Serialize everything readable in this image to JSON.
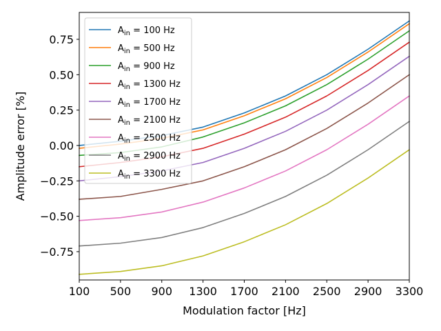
{
  "chart_data": {
    "type": "line",
    "title": "",
    "xlabel": "Modulation factor [Hz]",
    "ylabel": "Amplitude error [%]",
    "x": [
      100,
      500,
      900,
      1300,
      1700,
      2100,
      2500,
      2900,
      3300
    ],
    "xlim": [
      100,
      3300
    ],
    "ylim": [
      -0.95,
      0.94
    ],
    "xticks": [
      "100",
      "500",
      "900",
      "1300",
      "1700",
      "2100",
      "2500",
      "2900",
      "3300"
    ],
    "yticks": [
      0.75,
      0.5,
      0.25,
      0.0,
      -0.25,
      -0.5,
      -0.75
    ],
    "ytick_labels": [
      "0.75",
      "0.50",
      "0.25",
      "0.00",
      "−0.25",
      "−0.50",
      "−0.75"
    ],
    "grid": false,
    "legend_position": "top-left",
    "series": [
      {
        "name": "A_in = 100 Hz",
        "label_base": "A",
        "label_sub": "in",
        "label_rest": " = 100 Hz",
        "color": "#1f77b4",
        "values": [
          0.0,
          0.03,
          0.07,
          0.13,
          0.23,
          0.35,
          0.5,
          0.68,
          0.88
        ]
      },
      {
        "name": "A_in = 500 Hz",
        "label_base": "A",
        "label_sub": "in",
        "label_rest": " = 500 Hz",
        "color": "#ff7f0e",
        "values": [
          -0.02,
          0.01,
          0.05,
          0.11,
          0.21,
          0.33,
          0.48,
          0.66,
          0.86
        ]
      },
      {
        "name": "A_in = 900 Hz",
        "label_base": "A",
        "label_sub": "in",
        "label_rest": " = 900 Hz",
        "color": "#2ca02c",
        "values": [
          -0.07,
          -0.05,
          -0.01,
          0.06,
          0.16,
          0.28,
          0.43,
          0.61,
          0.81
        ]
      },
      {
        "name": "A_in = 1300 Hz",
        "label_base": "A",
        "label_sub": "in",
        "label_rest": " = 1300 Hz",
        "color": "#d62728",
        "values": [
          -0.15,
          -0.12,
          -0.08,
          -0.02,
          0.08,
          0.2,
          0.35,
          0.53,
          0.73
        ]
      },
      {
        "name": "A_in = 1700 Hz",
        "label_base": "A",
        "label_sub": "in",
        "label_rest": " = 1700 Hz",
        "color": "#9467bd",
        "values": [
          -0.25,
          -0.22,
          -0.18,
          -0.12,
          -0.02,
          0.1,
          0.25,
          0.43,
          0.63
        ]
      },
      {
        "name": "A_in = 2100 Hz",
        "label_base": "A",
        "label_sub": "in",
        "label_rest": " = 2100 Hz",
        "color": "#8c564b",
        "values": [
          -0.38,
          -0.36,
          -0.31,
          -0.25,
          -0.15,
          -0.03,
          0.12,
          0.3,
          0.5
        ]
      },
      {
        "name": "A_in = 2500 Hz",
        "label_base": "A",
        "label_sub": "in",
        "label_rest": " = 2500 Hz",
        "color": "#e377c2",
        "values": [
          -0.53,
          -0.51,
          -0.47,
          -0.4,
          -0.3,
          -0.18,
          -0.03,
          0.15,
          0.35
        ]
      },
      {
        "name": "A_in = 2900 Hz",
        "label_base": "A",
        "label_sub": "in",
        "label_rest": " = 2900 Hz",
        "color": "#7f7f7f",
        "values": [
          -0.71,
          -0.69,
          -0.65,
          -0.58,
          -0.48,
          -0.36,
          -0.21,
          -0.03,
          0.17
        ]
      },
      {
        "name": "A_in = 3300 Hz",
        "label_base": "A",
        "label_sub": "in",
        "label_rest": " = 3300 Hz",
        "color": "#bcbd22",
        "values": [
          -0.91,
          -0.89,
          -0.85,
          -0.78,
          -0.68,
          -0.56,
          -0.41,
          -0.23,
          -0.03
        ]
      }
    ]
  }
}
